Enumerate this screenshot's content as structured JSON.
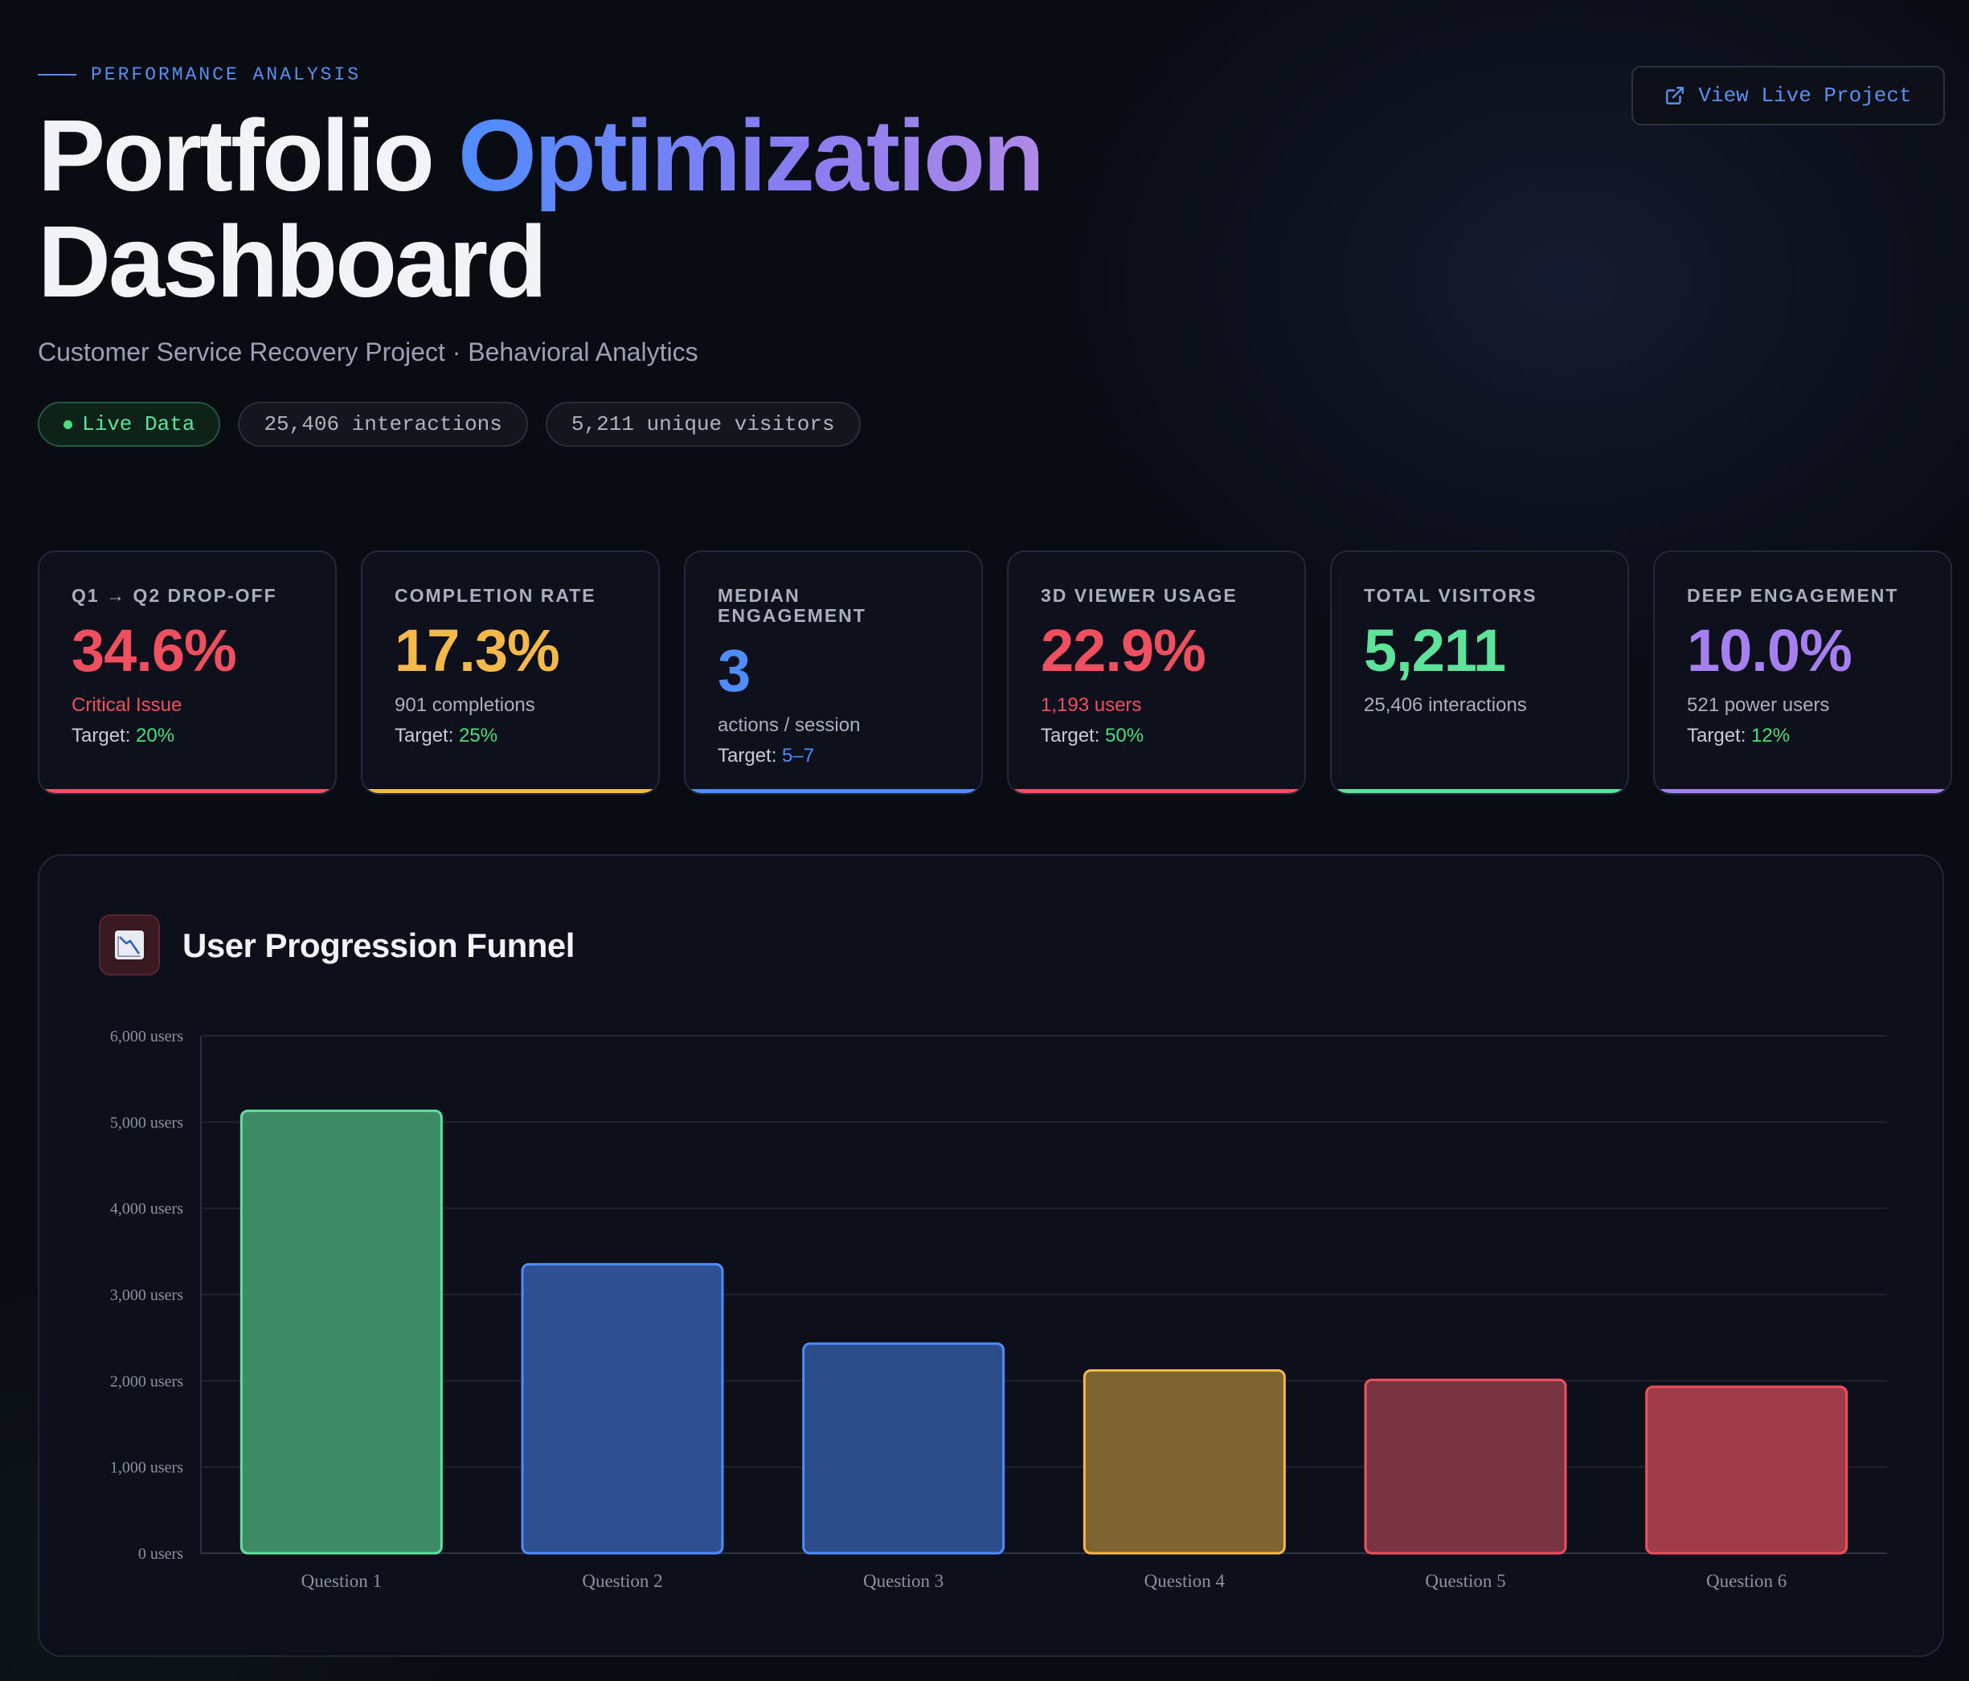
{
  "header": {
    "eyebrow": "PERFORMANCE ANALYSIS",
    "title_part1": "Portfolio",
    "title_accent": "Optimization",
    "title_part2": "Dashboard",
    "subtitle": "Customer Service Recovery Project · Behavioral Analytics",
    "pills": {
      "live": "Live Data",
      "interactions": "25,406 interactions",
      "visitors": "5,211 unique visitors"
    },
    "live_button": "View Live Project"
  },
  "colors": {
    "red": "#ef4f5f",
    "amber": "#f5b94a",
    "blue": "#4f8cff",
    "green": "#5ee39a",
    "purple": "#a67ff0"
  },
  "cards": [
    {
      "label": "Q1 → Q2 DROP-OFF",
      "value": "34.6%",
      "sub": "Critical Issue",
      "target_label": "Target: ",
      "target_value": "20%",
      "color": "#ef4f5f",
      "sub_color": "#ef4f5f"
    },
    {
      "label": "COMPLETION RATE",
      "value": "17.3%",
      "sub": "901 completions",
      "target_label": "Target: ",
      "target_value": "25%",
      "color": "#f5b94a",
      "sub_color": "#a9afc0"
    },
    {
      "label": "MEDIAN ENGAGEMENT",
      "value": "3",
      "sub": "actions / session",
      "target_label": "Target: ",
      "target_value": "5–7",
      "color": "#4f8cff",
      "sub_color": "#a9afc0"
    },
    {
      "label": "3D VIEWER USAGE",
      "value": "22.9%",
      "sub": "1,193 users",
      "target_label": "Target: ",
      "target_value": "50%",
      "color": "#ef4f5f",
      "sub_color": "#ef4f5f"
    },
    {
      "label": "TOTAL VISITORS",
      "value": "5,211",
      "sub": "25,406 interactions",
      "target_label": "",
      "target_value": "",
      "color": "#5ee39a",
      "sub_color": "#a9afc0"
    },
    {
      "label": "DEEP ENGAGEMENT",
      "value": "10.0%",
      "sub": "521 power users",
      "target_label": "Target: ",
      "target_value": "12%",
      "color": "#a67ff0",
      "sub_color": "#a9afc0"
    }
  ],
  "panel": {
    "title": "User Progression Funnel",
    "icon": "chart-down-icon"
  },
  "chart_data": {
    "type": "bar",
    "categories": [
      "Question 1",
      "Question 2",
      "Question 3",
      "Question 4",
      "Question 5",
      "Question 6"
    ],
    "values": [
      5130,
      3350,
      2430,
      2120,
      2010,
      1930
    ],
    "ylim": [
      0,
      6000
    ],
    "yticks": [
      0,
      1000,
      2000,
      3000,
      4000,
      5000,
      6000
    ],
    "ytick_labels": [
      "0 users",
      "1,000 users",
      "2,000 users",
      "3,000 users",
      "4,000 users",
      "5,000 users",
      "6,000 users"
    ],
    "grid": true,
    "bar_fill": [
      "#3f8a66",
      "#2f5090",
      "#2c4d8a",
      "#7e6433",
      "#7a3340",
      "#a03c4a"
    ],
    "bar_stroke": [
      "#5ee39a",
      "#4f8cff",
      "#4f8cff",
      "#f5b94a",
      "#ef4f5f",
      "#ef4f5f"
    ]
  }
}
